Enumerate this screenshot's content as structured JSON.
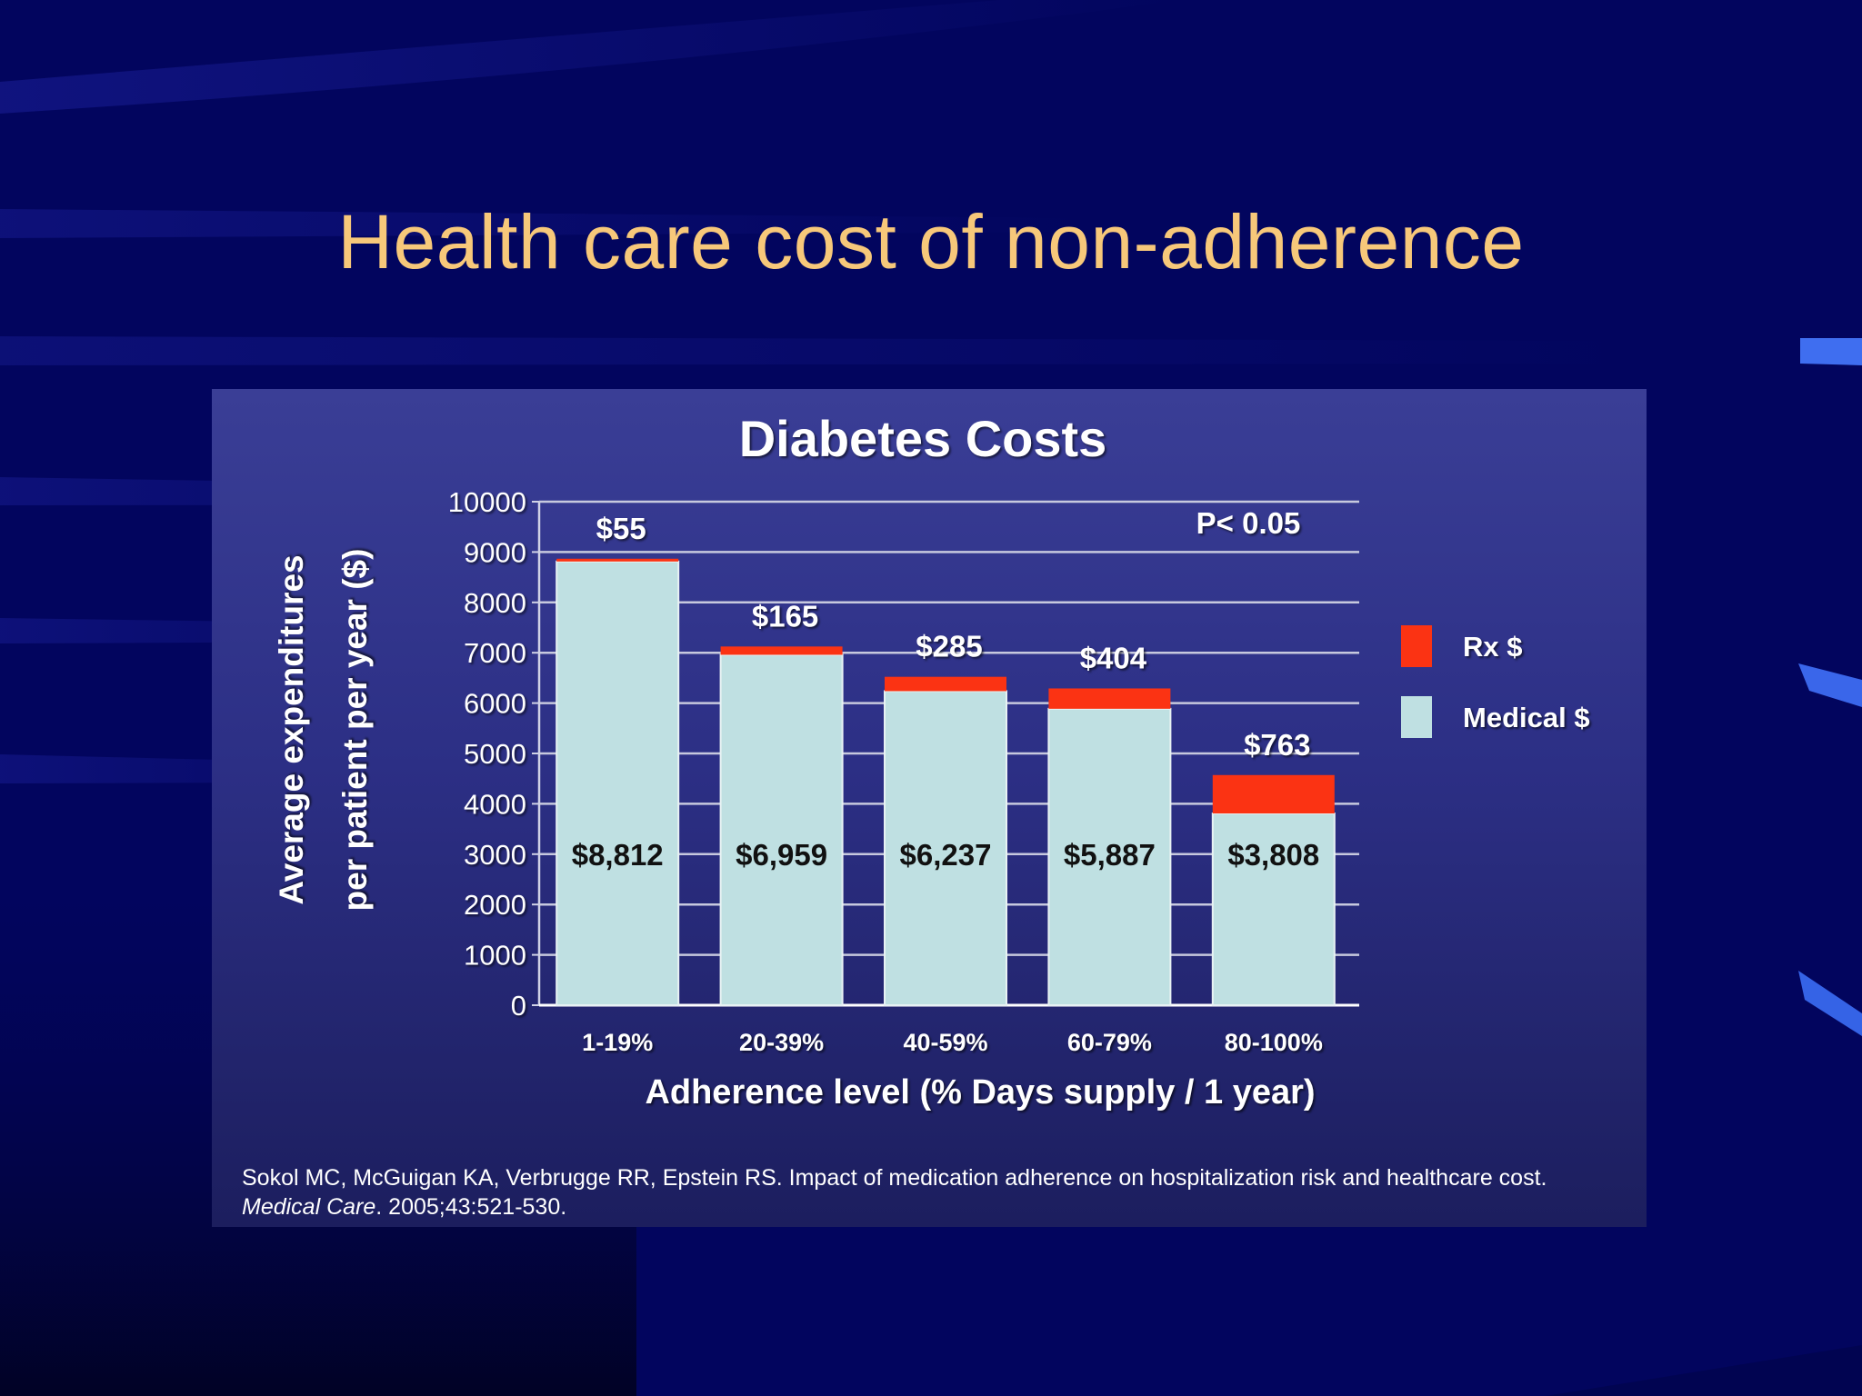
{
  "slide": {
    "title": "Health care cost of non-adherence"
  },
  "colors": {
    "background": "#02055e",
    "title": "#f7c87a",
    "rx": "#fb3313",
    "medical": "#bfe0e2",
    "text": "#ffffff"
  },
  "chart_data": {
    "type": "bar",
    "stacked": true,
    "title": "Diabetes Costs",
    "xlabel": "Adherence level (% Days supply / 1 year)",
    "ylabel_lines": [
      "Average expenditures",
      "per patient per year ($)"
    ],
    "categories": [
      "1-19%",
      "20-39%",
      "40-59%",
      "60-79%",
      "80-100%"
    ],
    "series": [
      {
        "name": "Medical $",
        "values": [
          8812,
          6959,
          6237,
          5887,
          3808
        ],
        "labels": [
          "$8,812",
          "$6,959",
          "$6,237",
          "$5,887",
          "$3,808"
        ],
        "color": "#bfe0e2"
      },
      {
        "name": "Rx $",
        "values": [
          55,
          165,
          285,
          404,
          763
        ],
        "labels": [
          "$55",
          "$165",
          "$285",
          "$404",
          "$763"
        ],
        "color": "#fb3313"
      }
    ],
    "ylim": [
      0,
      10000
    ],
    "yticks": [
      "0",
      "1000",
      "2000",
      "3000",
      "4000",
      "5000",
      "6000",
      "7000",
      "8000",
      "9000",
      "10000"
    ],
    "annotation": "P< 0.05",
    "legend": {
      "placement": "right",
      "entries": [
        "Rx $",
        "Medical $"
      ]
    },
    "grid": true
  },
  "citation": {
    "text_before": "Sokol MC, McGuigan KA, Verbrugge RR, Epstein RS. Impact of medication adherence on hospitalization risk and healthcare cost. ",
    "journal": "Medical Care",
    "text_after": ". 2005;43:521-530."
  }
}
